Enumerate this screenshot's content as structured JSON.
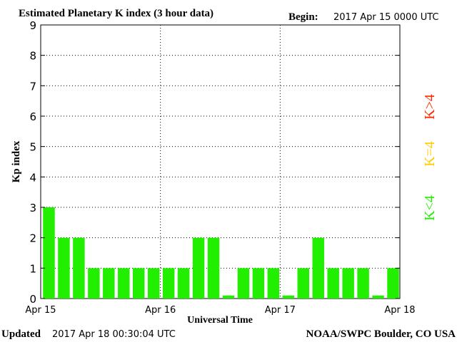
{
  "header": {
    "title": "Estimated Planetary K index (3 hour data)",
    "begin_label": "Begin:",
    "begin_value": "2017 Apr 15 0000 UTC"
  },
  "footer": {
    "updated_label": "Updated",
    "updated_value": "2017 Apr 18 00:30:04 UTC",
    "credit": "NOAA/SWPC Boulder, CO USA"
  },
  "legend": {
    "k_gt4": {
      "text": "K>4",
      "color": "#ff2a00"
    },
    "k_eq4": {
      "text": "K=4",
      "color": "#ffcc00"
    },
    "k_lt4": {
      "text": "K<4",
      "color": "#22ee00"
    }
  },
  "chart_data": {
    "type": "bar",
    "xlabel": "Universal Time",
    "ylabel": "Kp index",
    "ylim": [
      0,
      9
    ],
    "yticks": [
      "0",
      "1",
      "2",
      "3",
      "4",
      "5",
      "6",
      "7",
      "8",
      "9"
    ],
    "xticks": [
      "Apr 15",
      "Apr 16",
      "Apr 17",
      "Apr 18"
    ],
    "bar_color": "#22ee00",
    "grid": "dotted",
    "values": [
      3,
      2,
      2,
      1,
      1,
      1,
      1,
      1,
      1,
      1,
      2,
      2,
      0.1,
      1,
      1,
      1,
      0.1,
      1,
      2,
      1,
      1,
      1,
      0.1,
      1
    ]
  }
}
